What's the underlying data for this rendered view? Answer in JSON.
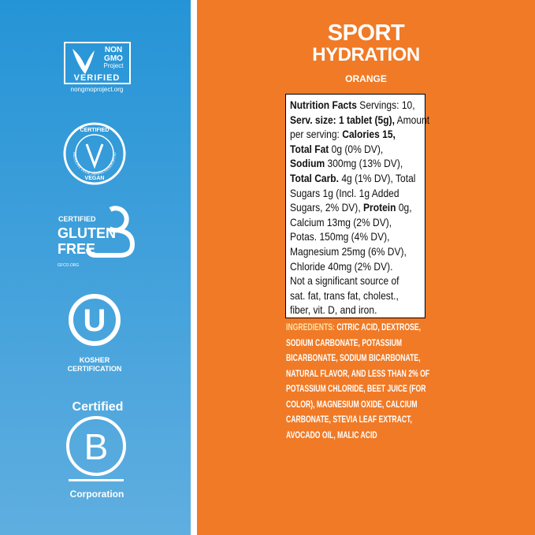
{
  "badges": {
    "non_gmo": {
      "line1": "NON",
      "line2": "GMO",
      "line3": "Project",
      "line4": "VERIFIED",
      "url": "nongmoproject.org"
    },
    "vegan": {
      "top": "CERTIFIED",
      "arc": "AMERICAN VEGETARIAN ASSOCIATION",
      "bottom": "VEGAN"
    },
    "gluten_free": {
      "line1": "CERTIFIED",
      "line2": "GLUTEN",
      "line3": "FREE",
      "url": "GFCO.ORG"
    },
    "kosher": {
      "symbol": "U",
      "line1": "KOSHER",
      "line2": "CERTIFICATION"
    },
    "b_corp": {
      "top": "Certified",
      "symbol": "B",
      "bottom": "Corporation"
    }
  },
  "product": {
    "title1": "SPORT",
    "title2": "HYDRATION",
    "flavor": "ORANGE"
  },
  "nutrition": {
    "lines": [
      [
        {
          "text": "Nutrition Facts",
          "bold": true
        },
        {
          "text": " Servings: 10,",
          "bold": false
        }
      ],
      [
        {
          "text": "Serv. size: 1 tablet (5g),",
          "bold": true
        },
        {
          "text": " Amount",
          "bold": false
        }
      ],
      [
        {
          "text": "per serving: ",
          "bold": false
        },
        {
          "text": "Calories 15,",
          "bold": true
        }
      ],
      [
        {
          "text": "Total Fat",
          "bold": true
        },
        {
          "text": " 0g (0% DV),",
          "bold": false
        }
      ],
      [
        {
          "text": "Sodium",
          "bold": true
        },
        {
          "text": " 300mg (13% DV),",
          "bold": false
        }
      ],
      [
        {
          "text": "Total Carb.",
          "bold": true
        },
        {
          "text": " 4g (1% DV), Total",
          "bold": false
        }
      ],
      [
        {
          "text": "Sugars 1g (Incl. 1g Added",
          "bold": false
        }
      ],
      [
        {
          "text": "Sugars, 2% DV), ",
          "bold": false
        },
        {
          "text": "Protein",
          "bold": true
        },
        {
          "text": " 0g,",
          "bold": false
        }
      ],
      [
        {
          "text": "Calcium 13mg (2% DV),",
          "bold": false
        }
      ],
      [
        {
          "text": "Potas. 150mg (4% DV),",
          "bold": false
        }
      ],
      [
        {
          "text": "Magnesium 25mg (6% DV),",
          "bold": false
        }
      ],
      [
        {
          "text": "Chloride 40mg (2% DV).",
          "bold": false
        }
      ],
      [
        {
          "text": "Not a significant source of",
          "bold": false
        }
      ],
      [
        {
          "text": "sat. fat, trans fat, cholest.,",
          "bold": false
        }
      ],
      [
        {
          "text": "fiber, vit. D, and iron.",
          "bold": false
        }
      ]
    ]
  },
  "ingredients": {
    "label": "INGREDIENTS:",
    "lines": [
      " CITRIC ACID, DEXTROSE,",
      "SODIUM CARBONATE, POTASSIUM",
      "BICARBONATE, SODIUM BICARBONATE,",
      "NATURAL FLAVOR, AND LESS THAN 2% OF",
      "POTASSIUM CHLORIDE, BEET JUICE (FOR",
      "COLOR), MAGNESIUM OXIDE, CALCIUM",
      "CARBONATE, STEVIA LEAF EXTRACT,",
      "AVOCADO OIL, MALIC ACID"
    ]
  }
}
